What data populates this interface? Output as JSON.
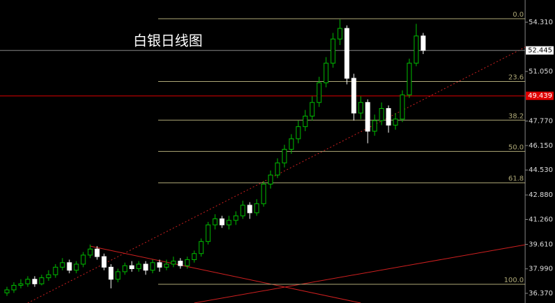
{
  "chart_data": {
    "type": "candlestick",
    "title": "白银日线图",
    "open": [
      36.4,
      36.6,
      36.9,
      37.0,
      37.3,
      37.0,
      37.4,
      37.6,
      38.1,
      38.4,
      37.9,
      38.3,
      38.9,
      39.3,
      38.8,
      38.1,
      37.3,
      37.8,
      38.2,
      38.0,
      38.3,
      37.9,
      38.4,
      38.1,
      38.3,
      38.5,
      38.2,
      38.6,
      39.0,
      39.8,
      40.9,
      41.3,
      40.9,
      41.2,
      41.5,
      42.2,
      41.7,
      42.3,
      43.6,
      44.2,
      45.0,
      45.9,
      46.6,
      47.4,
      48.1,
      49.0,
      50.3,
      51.6,
      53.2,
      53.9,
      50.6,
      48.3,
      49.0,
      47.1,
      47.8,
      48.6,
      47.5,
      47.9,
      49.5,
      51.6,
      53.4
    ],
    "high": [
      36.8,
      37.1,
      37.3,
      37.5,
      37.5,
      37.6,
      37.9,
      38.3,
      38.7,
      38.6,
      38.5,
      39.1,
      39.6,
      39.5,
      39.0,
      38.3,
      38.0,
      38.4,
      38.5,
      38.5,
      38.5,
      38.6,
      38.6,
      38.6,
      38.8,
      38.7,
      38.8,
      39.2,
      40.0,
      41.1,
      41.6,
      41.5,
      41.5,
      41.8,
      42.5,
      42.4,
      42.6,
      43.8,
      44.5,
      45.3,
      46.2,
      46.9,
      47.8,
      48.5,
      49.4,
      50.7,
      52.0,
      53.6,
      54.5,
      54.1,
      50.9,
      49.4,
      49.2,
      48.2,
      49.0,
      48.8,
      48.3,
      49.8,
      51.9,
      54.2,
      53.6
    ],
    "low": [
      36.2,
      36.4,
      36.7,
      36.8,
      36.8,
      36.9,
      37.2,
      37.4,
      37.9,
      37.7,
      37.7,
      38.1,
      38.7,
      38.6,
      37.9,
      36.7,
      37.1,
      37.6,
      37.8,
      37.8,
      37.6,
      37.7,
      37.8,
      37.9,
      38.1,
      38.0,
      38.0,
      38.4,
      38.8,
      39.6,
      40.6,
      40.7,
      40.6,
      40.9,
      41.3,
      41.3,
      41.5,
      42.1,
      43.3,
      44.0,
      44.7,
      45.6,
      46.3,
      47.1,
      47.8,
      48.7,
      50.0,
      51.3,
      52.8,
      50.2,
      47.8,
      47.9,
      46.3,
      46.8,
      47.5,
      47.0,
      47.2,
      47.7,
      49.3,
      51.4,
      52.2
    ],
    "close": [
      36.6,
      36.9,
      37.0,
      37.3,
      37.0,
      37.4,
      37.6,
      38.1,
      38.4,
      37.9,
      38.3,
      38.9,
      39.3,
      38.8,
      38.1,
      37.3,
      37.8,
      38.2,
      38.0,
      38.3,
      37.9,
      38.4,
      38.1,
      38.3,
      38.5,
      38.2,
      38.6,
      39.0,
      39.8,
      40.9,
      41.3,
      40.9,
      41.2,
      41.5,
      42.2,
      41.7,
      42.3,
      43.6,
      44.2,
      45.0,
      45.9,
      46.6,
      47.4,
      48.1,
      49.0,
      50.3,
      51.6,
      53.2,
      53.9,
      50.6,
      48.3,
      49.0,
      47.1,
      47.8,
      48.6,
      47.5,
      47.9,
      49.5,
      51.6,
      53.4,
      52.445
    ],
    "up_color": "#00c000",
    "down_color": "#ffffff",
    "ylim": [
      35.73,
      55.78
    ],
    "yticks": [
      {
        "value": 54.31,
        "label": "54.310"
      },
      {
        "value": 51.05,
        "label": "51.050"
      },
      {
        "value": 47.77,
        "label": "47.770"
      },
      {
        "value": 46.15,
        "label": "46.150"
      },
      {
        "value": 44.53,
        "label": "44.530"
      },
      {
        "value": 42.88,
        "label": "42.880"
      },
      {
        "value": 41.26,
        "label": "41.260"
      },
      {
        "value": 39.61,
        "label": "39.610"
      },
      {
        "value": 37.99,
        "label": "37.990"
      },
      {
        "value": 36.37,
        "label": "36.370"
      }
    ],
    "fib_color": "#b0aa78",
    "fib_levels": [
      {
        "label": "0.0",
        "value": 54.54
      },
      {
        "label": "23.6",
        "value": 50.39
      },
      {
        "label": "38.2",
        "value": 47.83
      },
      {
        "label": "50.0",
        "value": 45.76
      },
      {
        "label": "61.8",
        "value": 43.68
      },
      {
        "label": "100.0",
        "value": 36.97
      }
    ],
    "price_markers": [
      {
        "value": 52.445,
        "color": "#ffffff",
        "line_color": "#888888"
      },
      {
        "value": 49.439,
        "color": "#e00000",
        "line_color": "#e00000"
      }
    ]
  }
}
